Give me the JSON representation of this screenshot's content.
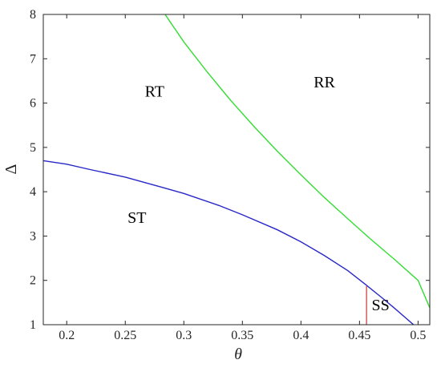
{
  "chart_data": {
    "type": "line",
    "title": "",
    "xlabel": "θ",
    "ylabel": "Δ",
    "xlim": [
      0.18,
      0.51
    ],
    "ylim": [
      1,
      8
    ],
    "xticks": [
      0.2,
      0.25,
      0.3,
      0.35,
      0.4,
      0.45,
      0.5
    ],
    "yticks": [
      1,
      2,
      3,
      4,
      5,
      6,
      7,
      8
    ],
    "xtick_labels": [
      "0.2",
      "0.25",
      "0.3",
      "0.35",
      "0.4",
      "0.45",
      "0.5"
    ],
    "ytick_labels": [
      "1",
      "2",
      "3",
      "4",
      "5",
      "6",
      "7",
      "8"
    ],
    "grid": false,
    "series": [
      {
        "color": "#2828c8",
        "points": [
          [
            0.18,
            4.7
          ],
          [
            0.2,
            4.62
          ],
          [
            0.22,
            4.5
          ],
          [
            0.25,
            4.33
          ],
          [
            0.28,
            4.11
          ],
          [
            0.3,
            3.96
          ],
          [
            0.33,
            3.69
          ],
          [
            0.35,
            3.48
          ],
          [
            0.38,
            3.14
          ],
          [
            0.4,
            2.87
          ],
          [
            0.42,
            2.56
          ],
          [
            0.44,
            2.22
          ],
          [
            0.455,
            1.91
          ],
          [
            0.47,
            1.59
          ],
          [
            0.48,
            1.37
          ],
          [
            0.49,
            1.14
          ],
          [
            0.497,
            0.98
          ]
        ]
      },
      {
        "color": "#33dd33",
        "points": [
          [
            0.284,
            8.0
          ],
          [
            0.3,
            7.38
          ],
          [
            0.32,
            6.7
          ],
          [
            0.34,
            6.06
          ],
          [
            0.36,
            5.47
          ],
          [
            0.38,
            4.91
          ],
          [
            0.4,
            4.38
          ],
          [
            0.42,
            3.87
          ],
          [
            0.44,
            3.39
          ],
          [
            0.46,
            2.92
          ],
          [
            0.48,
            2.47
          ],
          [
            0.5,
            2.0
          ],
          [
            0.51,
            1.38
          ]
        ]
      },
      {
        "color": "#d05050",
        "points": [
          [
            0.456,
            1.0
          ],
          [
            0.456,
            1.87
          ]
        ]
      }
    ],
    "annotations": [
      {
        "text": "RT",
        "x": 0.275,
        "y": 6.15
      },
      {
        "text": "RR",
        "x": 0.42,
        "y": 6.35
      },
      {
        "text": "ST",
        "x": 0.26,
        "y": 3.3
      },
      {
        "text": "SS",
        "x": 0.468,
        "y": 1.33
      }
    ]
  }
}
